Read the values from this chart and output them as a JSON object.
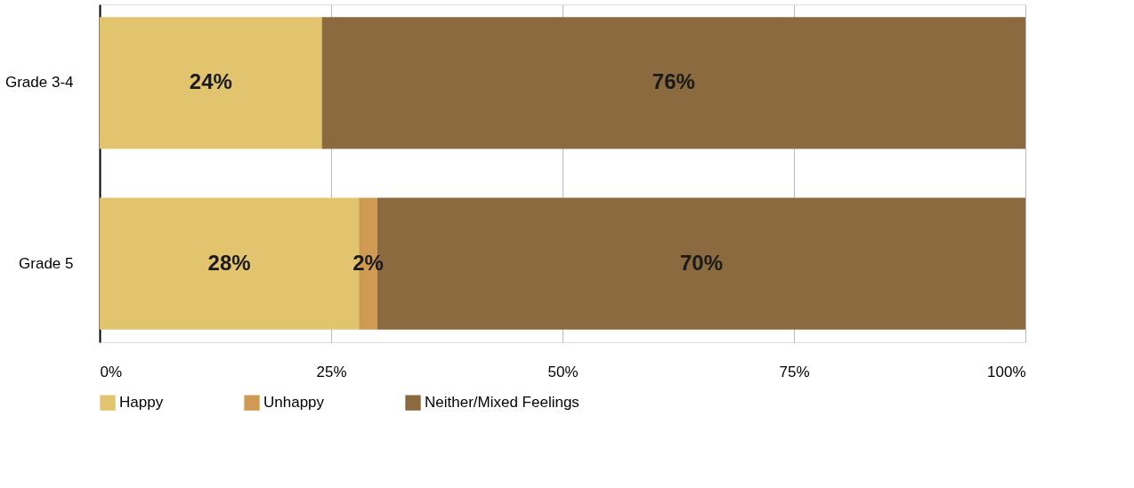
{
  "chart_data": {
    "type": "bar",
    "orientation": "horizontal",
    "stacked": true,
    "categories": [
      "Grade 3-4",
      "Grade 5"
    ],
    "series": [
      {
        "name": "Happy",
        "color": "#e2c46e",
        "values": [
          24,
          28
        ],
        "value_labels": [
          "24%",
          "28%"
        ]
      },
      {
        "name": "Unhappy",
        "color": "#d09a52",
        "values": [
          0,
          2
        ],
        "value_labels": [
          null,
          "2%"
        ]
      },
      {
        "name": "Neither/Mixed Feelings",
        "color": "#8a6a3e",
        "values": [
          76,
          70
        ],
        "value_labels": [
          "76%",
          "70%"
        ]
      }
    ],
    "xlim": [
      0,
      100
    ],
    "xticks": [
      {
        "value": 0,
        "label": "0%"
      },
      {
        "value": 25,
        "label": "25%"
      },
      {
        "value": 50,
        "label": "50%"
      },
      {
        "value": 75,
        "label": "75%"
      },
      {
        "value": 100,
        "label": "100%"
      }
    ],
    "grid": "x",
    "legend": "bottom"
  }
}
